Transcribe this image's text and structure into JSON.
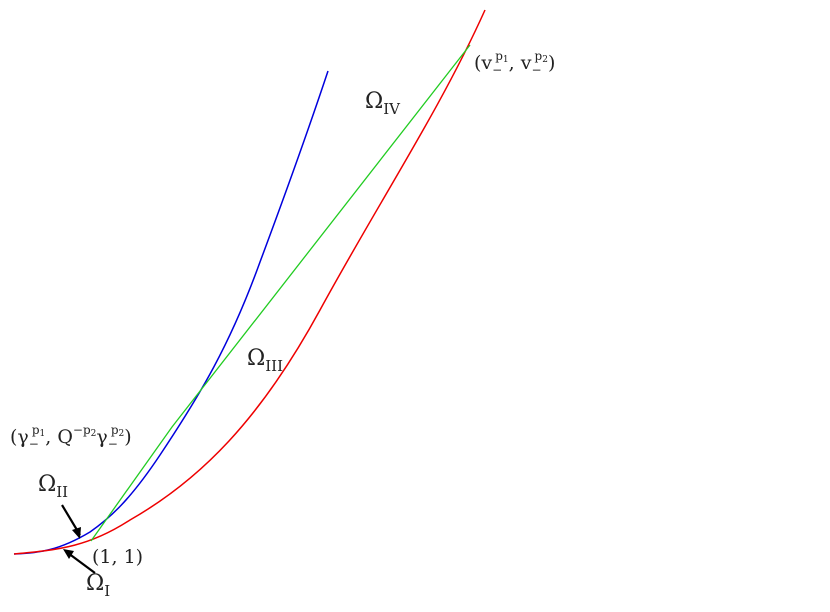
{
  "colors": {
    "blue": "#0000dd",
    "red": "#ee0000",
    "green": "#22cc22",
    "text": "#222222"
  },
  "labels": {
    "omega": "Ω",
    "region_iv": "IV",
    "region_iii": "III",
    "region_ii": "II",
    "region_i": "I",
    "point_unit": "(1, 1)",
    "point_v_open": "(v",
    "point_v_minus1": "−",
    "point_v_p1": "p",
    "point_v_p1_idx": "1",
    "point_v_comma": ", v",
    "point_v_minus2": "−",
    "point_v_p2": "p",
    "point_v_p2_idx": "2",
    "point_v_close": ")",
    "point_g_open": "(γ",
    "point_g_minus1": "−",
    "point_g_p1": "p",
    "point_g_p1_idx": "1",
    "point_g_comma": ", Q",
    "point_g_exp": "−p",
    "point_g_exp_idx": "2",
    "point_g_gamma": "γ",
    "point_g_minus2": "−",
    "point_g_p2": "p",
    "point_g_p2_idx": "2",
    "point_g_close": ")"
  }
}
